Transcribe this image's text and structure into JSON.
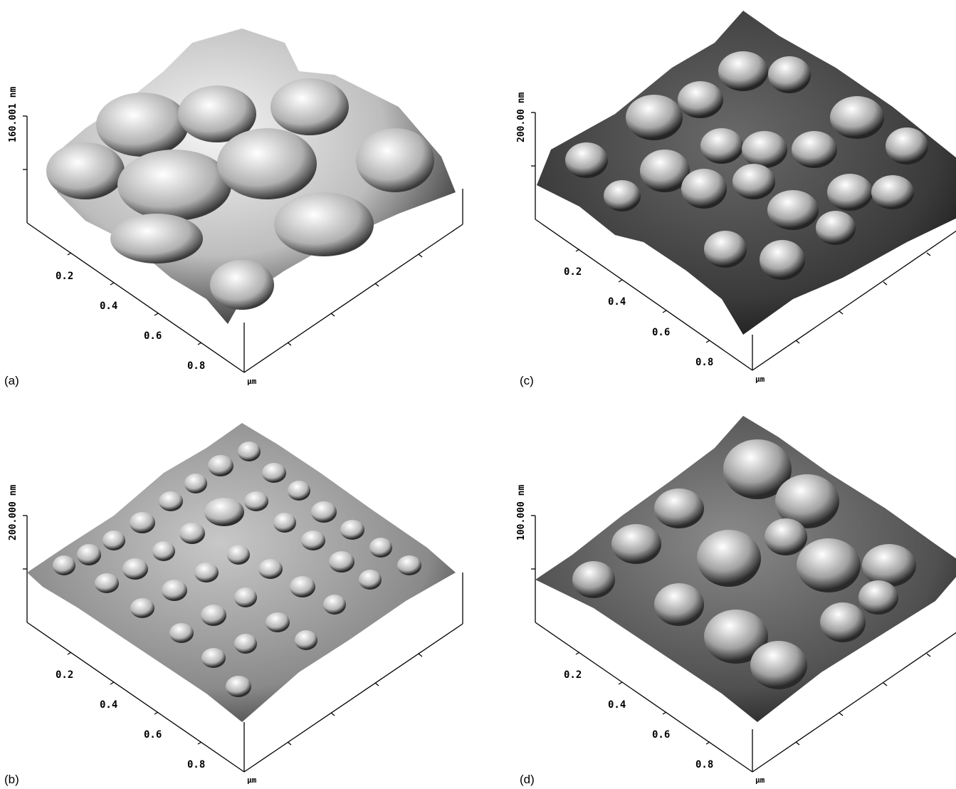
{
  "panels": [
    {
      "id": "a",
      "label": "(a)",
      "z_label": "160.001 nm",
      "ticks": [
        "0.2",
        "0.4",
        "0.6",
        "0.8"
      ],
      "unit": "µm",
      "grain_scale": "large"
    },
    {
      "id": "c",
      "label": "(c)",
      "z_label": "200.00 nm",
      "ticks": [
        "0.2",
        "0.4",
        "0.6",
        "0.8"
      ],
      "unit": "µm",
      "grain_scale": "medium"
    },
    {
      "id": "b",
      "label": "(b)",
      "z_label": "200.000 nm",
      "ticks": [
        "0.2",
        "0.4",
        "0.6",
        "0.8"
      ],
      "unit": "µm",
      "grain_scale": "small"
    },
    {
      "id": "d",
      "label": "(d)",
      "z_label": "100.000 nm",
      "ticks": [
        "0.2",
        "0.4",
        "0.6",
        "0.8"
      ],
      "unit": "µm",
      "grain_scale": "medium-large"
    }
  ]
}
